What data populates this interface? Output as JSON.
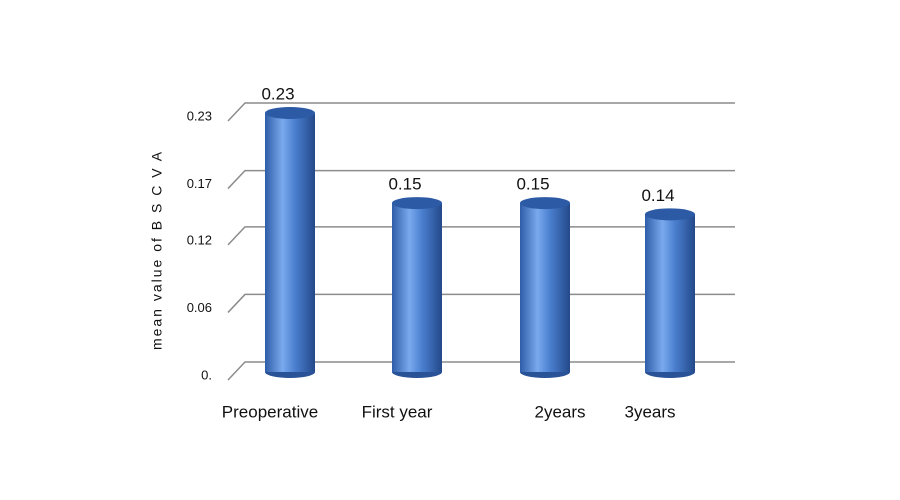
{
  "chart_data": {
    "type": "bar",
    "y_label": "mean value of B S C V A",
    "categories": [
      "Preoperative",
      "First year",
      "2years",
      "3years"
    ],
    "values": [
      0.23,
      0.15,
      0.15,
      0.14
    ],
    "color": "#4a7fcf",
    "ylim": [
      0,
      0.23
    ],
    "yticks": [
      {
        "value": 0,
        "label": "0."
      },
      0.06,
      0.12,
      0.17,
      0.23
    ],
    "grid": true
  }
}
